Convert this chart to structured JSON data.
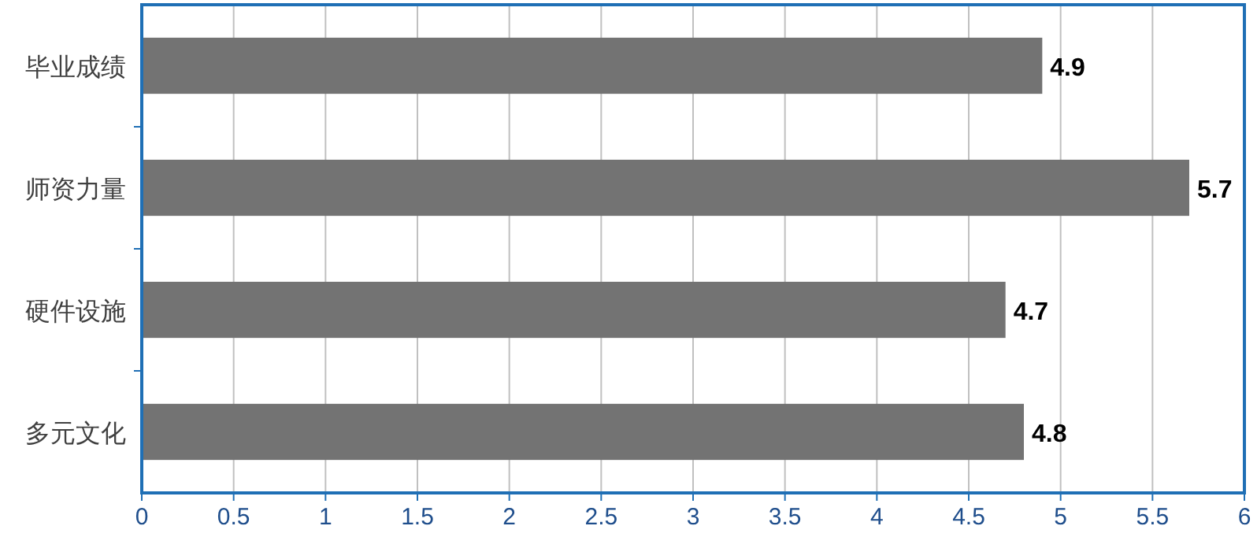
{
  "chart_data": {
    "type": "bar",
    "orientation": "horizontal",
    "categories": [
      "毕业成绩",
      "师资力量",
      "硬件设施",
      "多元文化"
    ],
    "values": [
      4.9,
      5.7,
      4.7,
      4.8
    ],
    "color": "#737373",
    "xlim": [
      0,
      6
    ],
    "xticks": [
      0,
      0.5,
      1,
      1.5,
      2,
      2.5,
      3,
      3.5,
      4,
      4.5,
      5,
      5.5,
      6
    ],
    "grid": "x",
    "data_labels": true
  }
}
